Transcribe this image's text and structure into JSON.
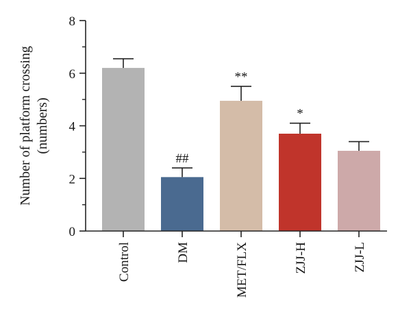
{
  "chart_data": {
    "type": "bar",
    "categories": [
      "Control",
      "DM",
      "MET/FLX",
      "ZJJ-H",
      "ZJJ-L"
    ],
    "values": [
      6.2,
      2.05,
      4.95,
      3.7,
      3.05
    ],
    "errors": [
      0.35,
      0.35,
      0.55,
      0.4,
      0.35
    ],
    "annotations": [
      "",
      "##",
      "**",
      "*",
      ""
    ],
    "colors": [
      "#b3b3b3",
      "#4a6a90",
      "#d4bca8",
      "#c0342b",
      "#cda9a9"
    ],
    "ylabel_lines": [
      "Number of platform crossing",
      "(numbers)"
    ],
    "xlabel": "",
    "ylim": [
      0,
      8
    ],
    "yticks": [
      0,
      2,
      4,
      6,
      8
    ],
    "grid": false
  }
}
